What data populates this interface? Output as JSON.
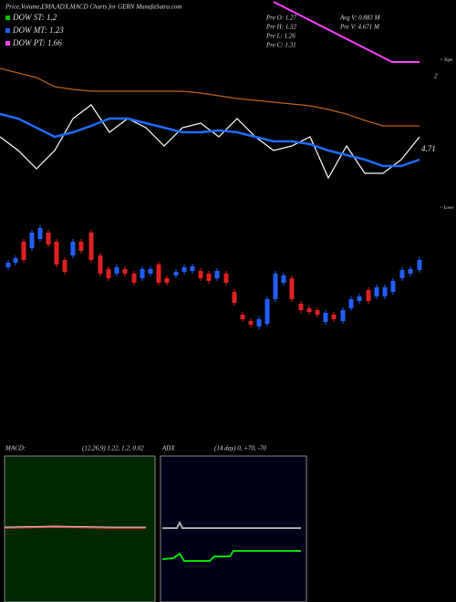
{
  "header": {
    "title": "Price,Volume,EMA,ADX,MACD Charts for GERN  MunafaSutra.com",
    "legend": [
      {
        "label": "DOW ST: 1.2",
        "color": "#00c000"
      },
      {
        "label": "DOW MT: 1.23",
        "color": "#2060ff"
      },
      {
        "label": "DOW PT: 1.66",
        "color": "#ff40ff"
      }
    ],
    "info": [
      "Pre   O: 1.27",
      "Pre   H: 1.32",
      "Pre   L: 1.26",
      "Pre   C: 1.31",
      "Avg  V: 0.883 M",
      "Pre   V: 4.671 M"
    ],
    "side_labels": [
      "< Tope",
      "2",
      "4.71",
      "< Lowe"
    ]
  },
  "chart_data": [
    {
      "type": "line",
      "xlim": [
        0,
        500
      ],
      "ylim": [
        0,
        155
      ],
      "x": [
        0,
        20,
        40,
        60,
        80,
        100,
        120,
        140,
        160,
        180,
        200,
        220,
        240,
        260,
        280,
        300,
        320,
        340,
        360,
        380,
        400,
        420,
        440,
        460
      ],
      "series": [
        {
          "color": "#c06018",
          "values": [
            140,
            135,
            130,
            120,
            117,
            115,
            115,
            115,
            115,
            115,
            115,
            113,
            110,
            107,
            105,
            103,
            101,
            99,
            95,
            90,
            83,
            77,
            77,
            77
          ]
        },
        {
          "color": "#ffffff",
          "values": [
            65,
            50,
            30,
            50,
            85,
            100,
            70,
            85,
            75,
            55,
            75,
            80,
            65,
            85,
            65,
            50,
            55,
            65,
            20,
            55,
            25,
            25,
            40,
            65
          ]
        },
        {
          "color": "#1e6cff",
          "values": [
            90,
            85,
            75,
            65,
            70,
            77,
            85,
            85,
            80,
            75,
            70,
            70,
            72,
            70,
            65,
            60,
            60,
            57,
            50,
            45,
            40,
            33,
            33,
            40
          ]
        }
      ]
    },
    {
      "type": "candlestick",
      "ylim": [
        0,
        150
      ],
      "xlim": [
        0,
        500
      ],
      "x": [
        9,
        17,
        26,
        35,
        44,
        53,
        62,
        71,
        80,
        89,
        100,
        110,
        119,
        128,
        137,
        147,
        156,
        165,
        174,
        183,
        193,
        202,
        211,
        220,
        229,
        238,
        248,
        257,
        266,
        275,
        284,
        293,
        302,
        311,
        320,
        330,
        339,
        348,
        357,
        366,
        376,
        385,
        394,
        404,
        413,
        422,
        431,
        441,
        450,
        460
      ],
      "open": [
        87,
        92,
        115,
        108,
        118,
        125,
        115,
        95,
        100,
        115,
        125,
        100,
        85,
        80,
        85,
        80,
        75,
        80,
        90,
        75,
        78,
        82,
        83,
        83,
        80,
        75,
        80,
        60,
        35,
        28,
        22,
        25,
        52,
        70,
        75,
        47,
        42,
        40,
        27,
        35,
        28,
        42,
        50,
        62,
        55,
        55,
        60,
        75,
        80,
        84
      ],
      "close": [
        92,
        97,
        95,
        125,
        130,
        112,
        90,
        82,
        115,
        105,
        95,
        80,
        75,
        87,
        80,
        70,
        85,
        85,
        70,
        70,
        82,
        87,
        88,
        75,
        72,
        83,
        70,
        48,
        30,
        24,
        30,
        52,
        80,
        78,
        52,
        40,
        38,
        35,
        37,
        30,
        40,
        52,
        55,
        50,
        65,
        65,
        72,
        84,
        85,
        95
      ],
      "up_color": "#2060ff",
      "down_color": "#e02020"
    }
  ]
}
